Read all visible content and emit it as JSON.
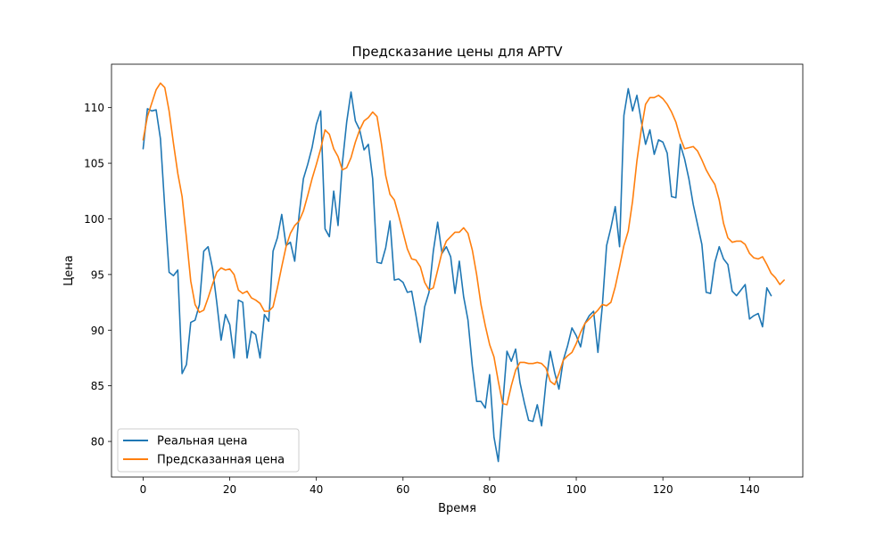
{
  "chart_data": {
    "type": "line",
    "title": "Предсказание цены для APTV",
    "xlabel": "Время",
    "ylabel": "Цена",
    "xlim": [
      -7.3,
      152.3
    ],
    "ylim": [
      76.8,
      113.9
    ],
    "xticks": [
      0,
      20,
      40,
      60,
      80,
      100,
      120,
      140
    ],
    "yticks": [
      80,
      85,
      90,
      95,
      100,
      105,
      110
    ],
    "grid": false,
    "legend_position": "lower-left",
    "series": [
      {
        "name": "Реальная цена",
        "color": "#1f77b4",
        "values": [
          106.3,
          109.9,
          109.7,
          109.8,
          107.2,
          101.0,
          95.2,
          94.9,
          95.4,
          86.1,
          86.9,
          90.7,
          90.9,
          92.3,
          97.1,
          97.5,
          95.6,
          92.5,
          89.1,
          91.4,
          90.5,
          87.5,
          92.7,
          92.5,
          87.5,
          89.9,
          89.6,
          87.5,
          91.4,
          90.8,
          97.1,
          98.3,
          100.4,
          97.6,
          97.9,
          96.2,
          100.3,
          103.6,
          104.9,
          106.4,
          108.5,
          109.7,
          99.1,
          98.4,
          102.5,
          99.4,
          105.0,
          108.7,
          111.4,
          108.8,
          108.0,
          106.2,
          106.7,
          103.6,
          96.1,
          96.0,
          97.4,
          99.8,
          94.5,
          94.6,
          94.3,
          93.4,
          93.5,
          91.3,
          88.9,
          92.1,
          93.4,
          97.1,
          99.7,
          96.9,
          97.5,
          96.6,
          93.3,
          96.2,
          93.0,
          90.9,
          86.8,
          83.6,
          83.6,
          83.0,
          86.0,
          80.4,
          78.2,
          83.2,
          88.1,
          87.2,
          88.3,
          85.3,
          83.5,
          81.9,
          81.8,
          83.3,
          81.4,
          85.3,
          88.1,
          86.2,
          84.7,
          87.3,
          88.6,
          90.2,
          89.5,
          88.5,
          90.6,
          91.3,
          91.7,
          88.0,
          92.1,
          97.6,
          99.2,
          101.1,
          97.5,
          109.3,
          111.7,
          109.7,
          111.1,
          108.8,
          106.7,
          108.0,
          105.8,
          107.1,
          106.9,
          105.9,
          102.0,
          101.9,
          106.7,
          105.4,
          103.6,
          101.3,
          99.5,
          97.7,
          93.4,
          93.3,
          96.1,
          97.5,
          96.4,
          95.9,
          93.5,
          93.1,
          93.6,
          94.1,
          91.0,
          91.3,
          91.5,
          90.3,
          93.8,
          93.1
        ]
      },
      {
        "name": "Предсказанная цена",
        "color": "#ff7f0e",
        "values": [
          107.1,
          109.2,
          110.4,
          111.6,
          112.2,
          111.8,
          109.7,
          106.8,
          104.1,
          102.0,
          98.3,
          94.4,
          92.3,
          91.6,
          91.8,
          92.9,
          94.1,
          95.2,
          95.6,
          95.4,
          95.5,
          95.0,
          93.6,
          93.3,
          93.5,
          92.9,
          92.7,
          92.4,
          91.7,
          91.7,
          92.1,
          93.8,
          95.7,
          97.5,
          98.7,
          99.4,
          99.8,
          100.7,
          102.1,
          103.6,
          104.9,
          106.3,
          108.0,
          107.6,
          106.3,
          105.6,
          104.4,
          104.6,
          105.5,
          106.9,
          108.0,
          108.8,
          109.1,
          109.6,
          109.2,
          106.8,
          103.9,
          102.2,
          101.7,
          100.3,
          98.8,
          97.3,
          96.4,
          96.3,
          95.7,
          94.3,
          93.6,
          93.8,
          95.4,
          97.0,
          98.0,
          98.4,
          98.8,
          98.8,
          99.2,
          98.7,
          97.2,
          95.0,
          92.3,
          90.4,
          88.7,
          87.6,
          85.4,
          83.4,
          83.3,
          85.0,
          86.4,
          87.1,
          87.1,
          87.0,
          87.0,
          87.1,
          87.0,
          86.6,
          85.4,
          85.1,
          86.1,
          87.3,
          87.7,
          88.0,
          88.8,
          89.8,
          90.6,
          91.0,
          91.4,
          91.8,
          92.3,
          92.2,
          92.5,
          93.9,
          95.7,
          97.6,
          98.9,
          101.6,
          105.2,
          108.0,
          110.3,
          110.9,
          110.9,
          111.1,
          110.8,
          110.3,
          109.6,
          108.7,
          107.3,
          106.3,
          106.4,
          106.5,
          106.1,
          105.3,
          104.4,
          103.7,
          103.1,
          101.7,
          99.6,
          98.3,
          97.9,
          98.0,
          98.0,
          97.7,
          96.9,
          96.5,
          96.4,
          96.6,
          95.9,
          95.1,
          94.7,
          94.1,
          94.5
        ]
      }
    ]
  }
}
